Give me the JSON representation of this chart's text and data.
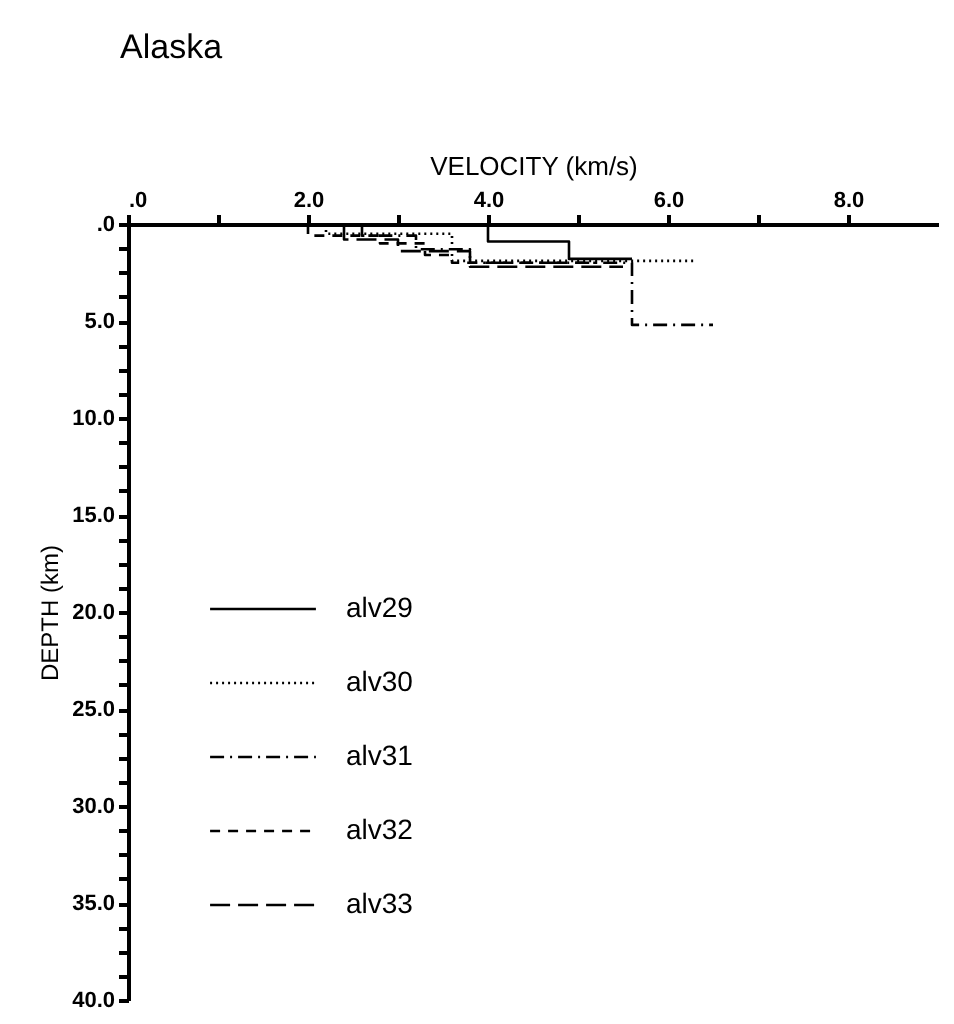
{
  "chart_data": {
    "type": "line",
    "title": "Alaska",
    "xlabel": "VELOCITY (km/s)",
    "ylabel": "DEPTH (km)",
    "xlim": [
      0,
      9
    ],
    "xticks": [
      {
        "value": 0,
        "label": ".0"
      },
      {
        "value": 1,
        "label": null
      },
      {
        "value": 2,
        "label": "2.0"
      },
      {
        "value": 3,
        "label": null
      },
      {
        "value": 4,
        "label": "4.0"
      },
      {
        "value": 5,
        "label": null
      },
      {
        "value": 6,
        "label": "6.0"
      },
      {
        "value": 7,
        "label": null
      },
      {
        "value": 8,
        "label": "8.0"
      }
    ],
    "ylim": [
      40,
      0
    ],
    "yticks": [
      {
        "value": 0,
        "label": ".0"
      },
      {
        "value": 1.25,
        "label": null
      },
      {
        "value": 2.5,
        "label": null
      },
      {
        "value": 3.75,
        "label": null
      },
      {
        "value": 5,
        "label": "5.0"
      },
      {
        "value": 6.25,
        "label": null
      },
      {
        "value": 7.5,
        "label": null
      },
      {
        "value": 8.75,
        "label": null
      },
      {
        "value": 10,
        "label": "10.0"
      },
      {
        "value": 11.25,
        "label": null
      },
      {
        "value": 12.5,
        "label": null
      },
      {
        "value": 13.75,
        "label": null
      },
      {
        "value": 15,
        "label": "15.0"
      },
      {
        "value": 16.25,
        "label": null
      },
      {
        "value": 17.5,
        "label": null
      },
      {
        "value": 18.75,
        "label": null
      },
      {
        "value": 20,
        "label": "20.0"
      },
      {
        "value": 21.25,
        "label": null
      },
      {
        "value": 22.5,
        "label": null
      },
      {
        "value": 23.75,
        "label": null
      },
      {
        "value": 25,
        "label": "25.0"
      },
      {
        "value": 26.25,
        "label": null
      },
      {
        "value": 27.5,
        "label": null
      },
      {
        "value": 28.75,
        "label": null
      },
      {
        "value": 30,
        "label": "30.0"
      },
      {
        "value": 31.25,
        "label": null
      },
      {
        "value": 32.5,
        "label": null
      },
      {
        "value": 33.75,
        "label": null
      },
      {
        "value": 35,
        "label": "35.0"
      },
      {
        "value": 36.25,
        "label": null
      },
      {
        "value": 37.5,
        "label": null
      },
      {
        "value": 38.75,
        "label": null
      },
      {
        "value": 40,
        "label": "40.0"
      }
    ],
    "grid": false,
    "legend": "bottom left",
    "marker": "none",
    "series": [
      {
        "name": "alv29",
        "color": "#000000",
        "line_style": "solid",
        "x": [
          4.0,
          4.0,
          4.9,
          4.9,
          5.6
        ],
        "values": [
          0,
          0.9,
          0.9,
          1.8,
          1.8
        ]
      },
      {
        "name": "alv30",
        "color": "#000000",
        "line_style": "dotted",
        "x": [
          2.2,
          2.2,
          3.6,
          3.6,
          6.3
        ],
        "values": [
          0,
          0.5,
          0.5,
          1.9,
          1.9
        ]
      },
      {
        "name": "alv31",
        "color": "#000000",
        "line_style": "dashdot",
        "x": [
          2.6,
          2.6,
          3.2,
          3.2,
          3.8,
          3.8,
          5.6,
          5.6,
          6.5
        ],
        "values": [
          0,
          0.6,
          0.6,
          1.3,
          1.3,
          2.0,
          2.0,
          5.2,
          5.2
        ]
      },
      {
        "name": "alv32",
        "color": "#000000",
        "line_style": "dashed",
        "x": [
          2.0,
          2.0,
          2.8,
          2.8,
          3.3,
          3.3,
          3.6,
          3.6,
          5.2
        ],
        "values": [
          0,
          0.6,
          0.6,
          1.0,
          1.0,
          1.6,
          1.6,
          2.0,
          2.0
        ]
      },
      {
        "name": "alv33",
        "color": "#000000",
        "line_style": "longdash",
        "x": [
          2.4,
          2.4,
          3.0,
          3.0,
          3.8,
          3.8,
          5.5
        ],
        "values": [
          0,
          0.8,
          0.8,
          1.4,
          1.4,
          2.2,
          2.2
        ]
      }
    ]
  }
}
